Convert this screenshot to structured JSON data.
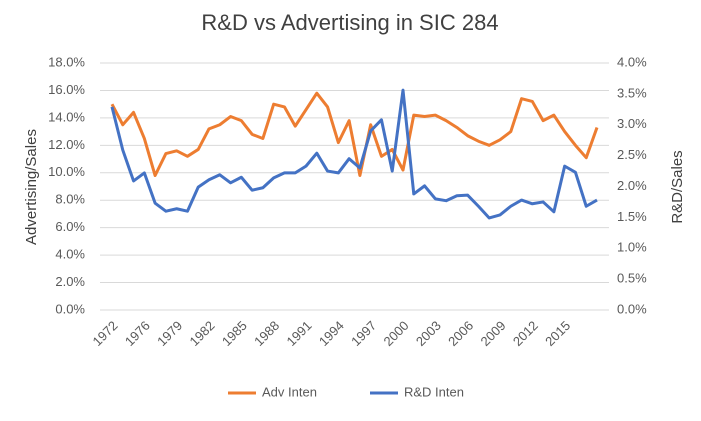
{
  "chart_data": {
    "type": "line",
    "title": "R&D vs Advertising in SIC 284",
    "y_label": "Advertising/Sales",
    "y2_label": "R&D/Sales",
    "categories": [
      "1972",
      null,
      null,
      "1976",
      null,
      null,
      "1979",
      null,
      null,
      "1982",
      null,
      null,
      "1985",
      null,
      null,
      "1988",
      null,
      null,
      "1991",
      null,
      null,
      "1994",
      null,
      null,
      "1997",
      null,
      null,
      "2000",
      null,
      null,
      "2003",
      null,
      null,
      "2006",
      null,
      null,
      "2009",
      null,
      null,
      "2012",
      null,
      null,
      "2015",
      null,
      null,
      null
    ],
    "series": [
      {
        "name": "Adv Inten",
        "color": "#ed7d31",
        "values": [
          15.0,
          13.5,
          14.4,
          12.5,
          9.8,
          11.4,
          11.6,
          11.2,
          11.7,
          13.2,
          13.5,
          14.1,
          13.8,
          12.8,
          12.5,
          15.0,
          14.8,
          13.4,
          14.6,
          15.8,
          14.8,
          12.2,
          13.8,
          9.8,
          13.5,
          11.2,
          11.7,
          10.2,
          14.2,
          14.1,
          14.2,
          13.8,
          13.3,
          12.7,
          12.3,
          12.0,
          12.4,
          13.0,
          15.4,
          15.2,
          13.8,
          14.2,
          13.0,
          12.0,
          11.1,
          13.3
        ]
      },
      {
        "name": "R&D Inten",
        "color": "#4472c4",
        "axis": "y2",
        "values": [
          3.29,
          2.59,
          2.09,
          2.22,
          1.73,
          1.6,
          1.64,
          1.6,
          1.99,
          2.11,
          2.19,
          2.06,
          2.15,
          1.94,
          1.98,
          2.14,
          2.22,
          2.22,
          2.33,
          2.54,
          2.25,
          2.22,
          2.45,
          2.3,
          2.9,
          3.08,
          2.25,
          3.56,
          1.88,
          2.01,
          1.8,
          1.77,
          1.85,
          1.86,
          1.68,
          1.49,
          1.54,
          1.68,
          1.78,
          1.72,
          1.75,
          1.59,
          2.33,
          2.23,
          1.68,
          1.78
        ]
      }
    ],
    "ylim": [
      0,
      18
    ],
    "yticks": [
      {
        "value": 0,
        "label": "0.0%"
      },
      {
        "value": 2,
        "label": "2.0%"
      },
      {
        "value": 4,
        "label": "4.0%"
      },
      {
        "value": 6,
        "label": "6.0%"
      },
      {
        "value": 8,
        "label": "8.0%"
      },
      {
        "value": 10,
        "label": "10.0%"
      },
      {
        "value": 12,
        "label": "12.0%"
      },
      {
        "value": 14,
        "label": "14.0%"
      },
      {
        "value": 16,
        "label": "16.0%"
      },
      {
        "value": 18,
        "label": "18.0%"
      }
    ],
    "y2lim": [
      0,
      4
    ],
    "y2ticks": [
      {
        "value": 0,
        "label": "0.0%"
      },
      {
        "value": 0.5,
        "label": "0.5%"
      },
      {
        "value": 1,
        "label": "1.0%"
      },
      {
        "value": 1.5,
        "label": "1.5%"
      },
      {
        "value": 2,
        "label": "2.0%"
      },
      {
        "value": 2.5,
        "label": "2.5%"
      },
      {
        "value": 3,
        "label": "3.0%"
      },
      {
        "value": 3.5,
        "label": "3.5%"
      },
      {
        "value": 4,
        "label": "4.0%"
      }
    ],
    "grid": true,
    "legend": "bottom"
  }
}
